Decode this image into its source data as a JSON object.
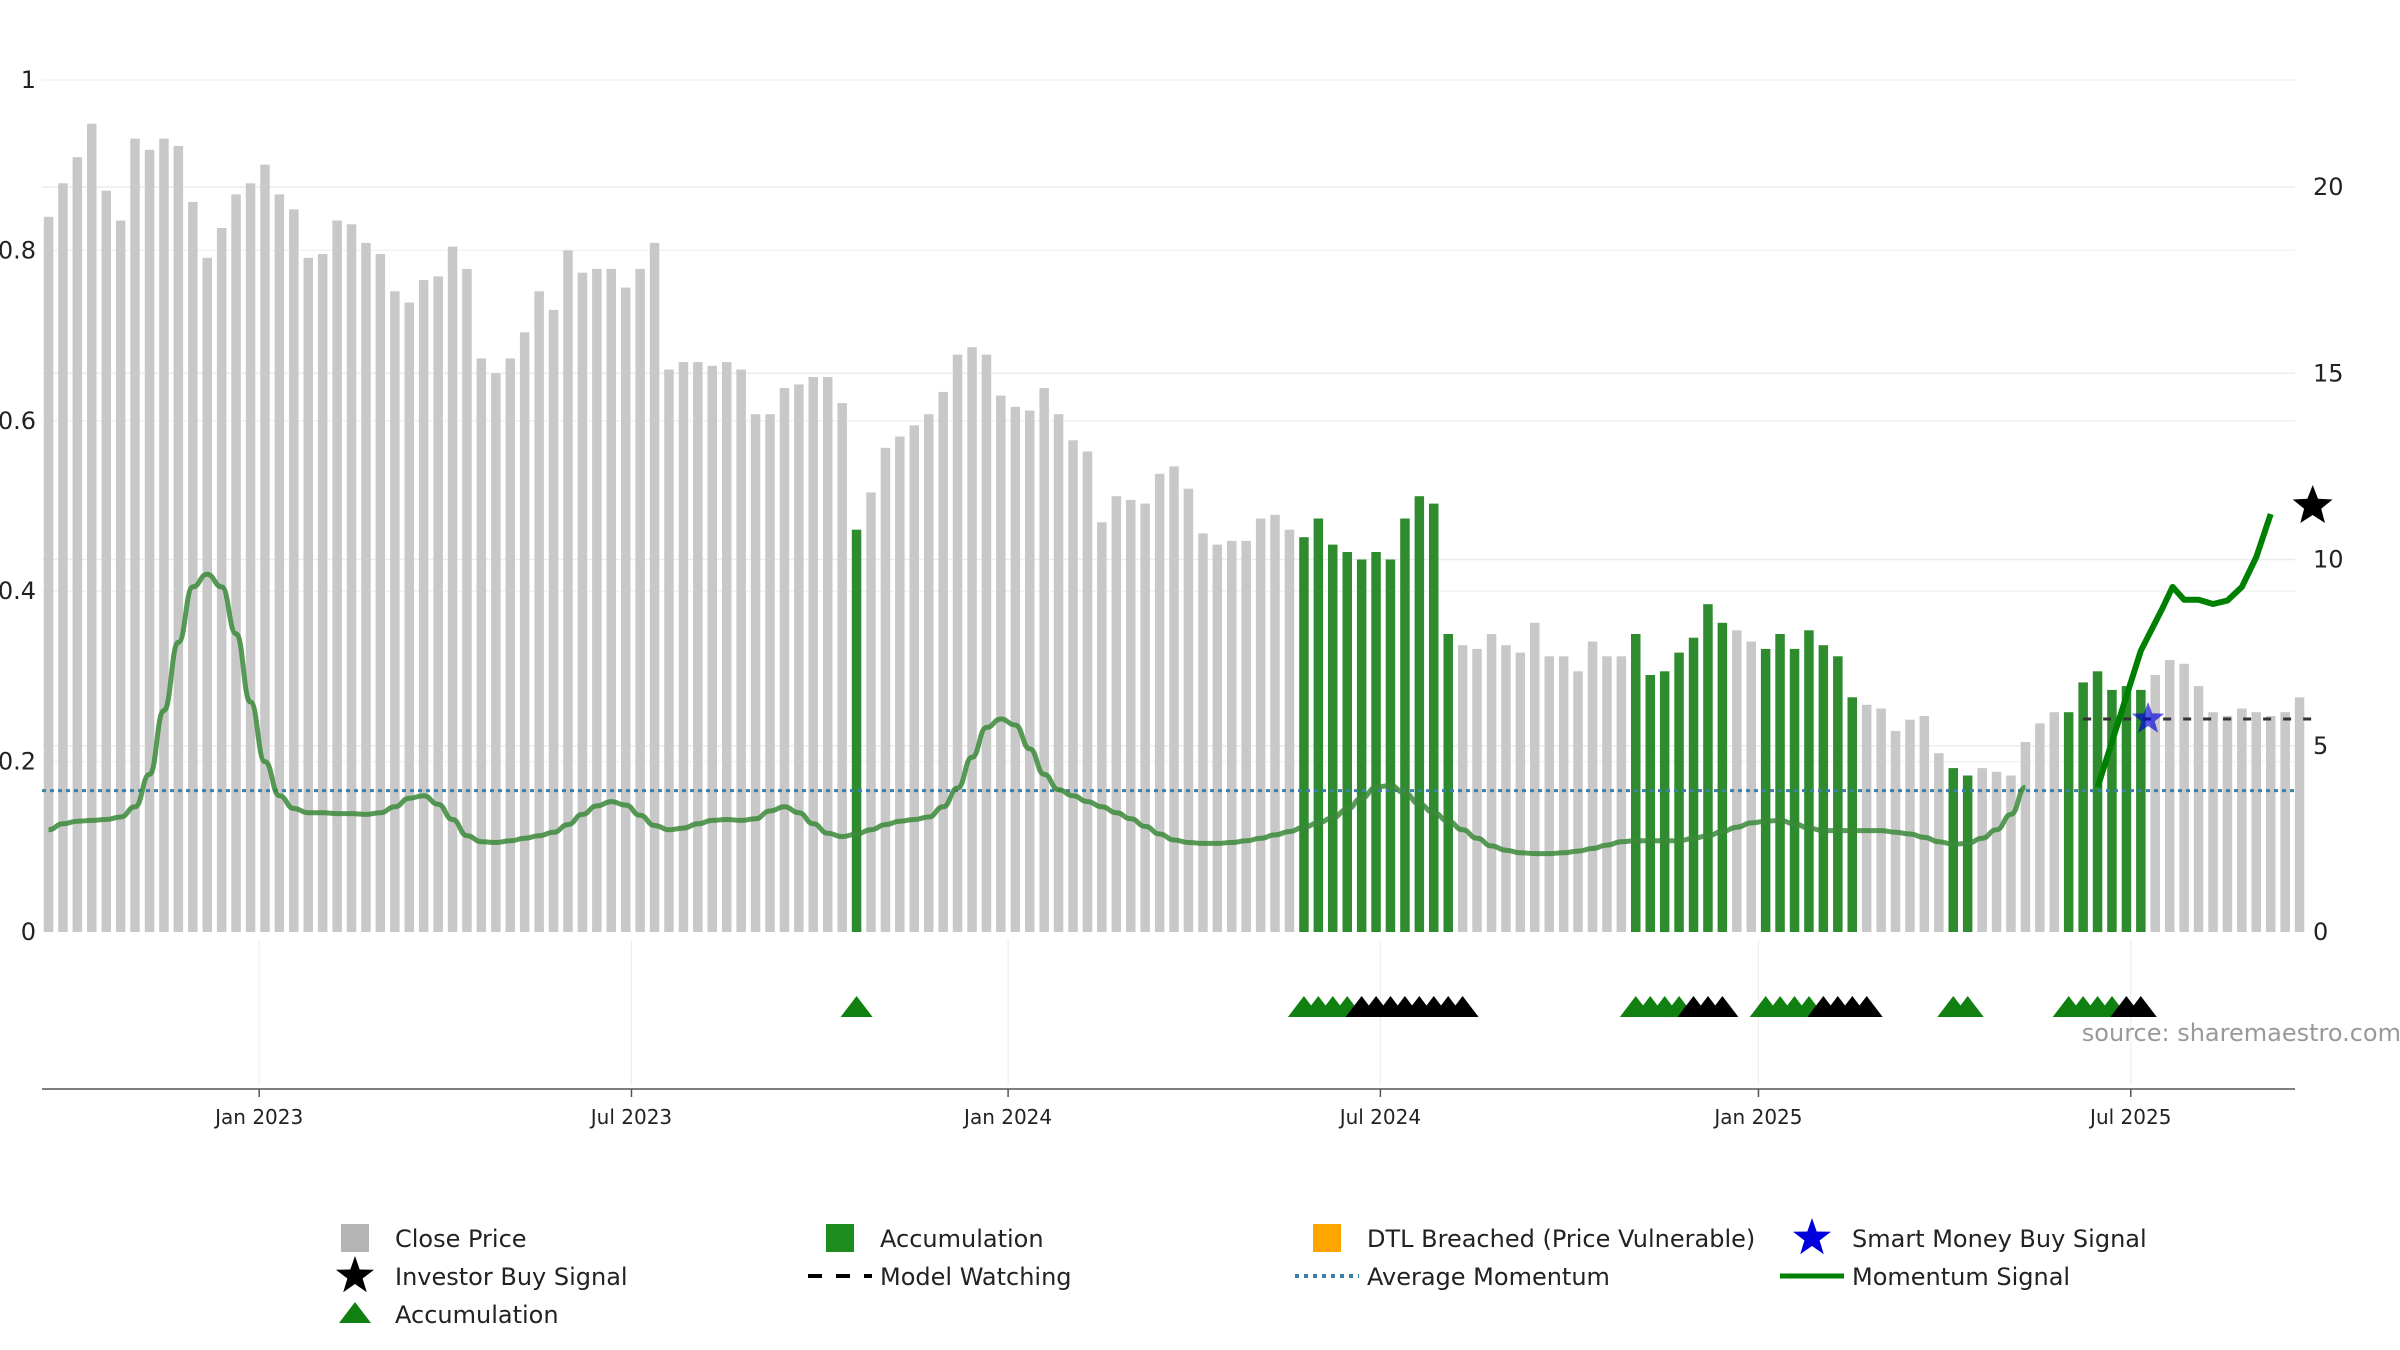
{
  "source_label": "source: sharemaestro.com",
  "colors": {
    "price_bar": "#c8c8c8",
    "accumulation": "#2e8b2e",
    "accumulation_marker": "#108010",
    "investor_marker": "#000000",
    "dtl": "#ffa500",
    "smart_money": "#0000dd",
    "average_momentum": "#3d7fa6",
    "momentum": "#3a8a3a",
    "momentum_bright": "#008000"
  },
  "legend": [
    {
      "label": "Close Price",
      "icon": "square-icon",
      "color": "#b4b4b4"
    },
    {
      "label": "Accumulation",
      "icon": "square-icon",
      "color": "#1e8c1e"
    },
    {
      "label": "DTL Breached (Price Vulnerable)",
      "icon": "square-icon",
      "color": "#ffa500"
    },
    {
      "label": "Smart Money Buy Signal",
      "icon": "star-icon",
      "color": "#0000dd"
    },
    {
      "label": "Investor Buy Signal",
      "icon": "star-icon",
      "color": "#000000"
    },
    {
      "label": "Model Watching",
      "icon": "dash-line-icon",
      "color": "#000000"
    },
    {
      "label": "Average Momentum",
      "icon": "dotted-line-icon",
      "color": "#3d7fa6"
    },
    {
      "label": "Momentum Signal",
      "icon": "solid-line-icon",
      "color": "#008000"
    },
    {
      "label": "Accumulation",
      "icon": "triangle-icon",
      "color": "#108010"
    }
  ],
  "chart_data": {
    "type": "bar",
    "series_count": 158,
    "grid": "horizontal",
    "legend_position": "bottom",
    "x_axis": {
      "tick_labels": [
        "Jan 2023",
        "Jul 2023",
        "Jan 2024",
        "Jul 2024",
        "Jan 2025",
        "Jul 2025"
      ],
      "tick_index": [
        14.6,
        40.4,
        66.5,
        92.3,
        118.5,
        144.3
      ]
    },
    "y_left": {
      "range": [
        0,
        1
      ],
      "ticks": [
        "0",
        "0.2",
        "0.4",
        "0.6",
        "0.8",
        "1"
      ],
      "tick_values": [
        0,
        0.2,
        0.4,
        0.6,
        0.8,
        1
      ]
    },
    "y_right": {
      "range": [
        0,
        22.8
      ],
      "ticks": [
        "0",
        "5",
        "10",
        "15",
        "20"
      ],
      "tick_values": [
        0,
        5,
        10,
        15,
        20
      ]
    },
    "close_price": [
      19.2,
      20.1,
      20.8,
      21.7,
      19.9,
      19.1,
      21.3,
      21.0,
      21.3,
      21.1,
      19.6,
      18.1,
      18.9,
      19.8,
      20.1,
      20.6,
      19.8,
      19.4,
      18.1,
      18.2,
      19.1,
      19.0,
      18.5,
      18.2,
      17.2,
      16.9,
      17.5,
      17.6,
      18.4,
      17.8,
      15.4,
      15.0,
      15.4,
      16.1,
      17.2,
      16.7,
      18.3,
      17.7,
      17.8,
      17.8,
      17.3,
      17.8,
      18.5,
      15.1,
      15.3,
      15.3,
      15.2,
      15.3,
      15.1,
      13.9,
      13.9,
      14.6,
      14.7,
      14.9,
      14.9,
      14.2,
      10.8,
      11.8,
      13.0,
      13.3,
      13.6,
      13.9,
      14.5,
      15.5,
      15.7,
      15.5,
      14.4,
      14.1,
      14.0,
      14.6,
      13.9,
      13.2,
      12.9,
      11.0,
      11.7,
      11.6,
      11.5,
      12.3,
      12.5,
      11.9,
      10.7,
      10.4,
      10.5,
      10.5,
      11.1,
      11.2,
      10.8,
      10.6,
      11.1,
      10.4,
      10.2,
      10.0,
      10.2,
      10.0,
      11.1,
      11.7,
      11.5,
      8.0,
      7.7,
      7.6,
      8.0,
      7.7,
      7.5,
      8.3,
      7.4,
      7.4,
      7.0,
      7.8,
      7.4,
      7.4,
      8.0,
      6.9,
      7.0,
      7.5,
      7.9,
      8.8,
      8.3,
      8.1,
      7.8,
      7.6,
      8.0,
      7.6,
      8.1,
      7.7,
      7.4,
      6.3,
      6.1,
      6.0,
      5.4,
      5.7,
      5.8,
      4.8,
      4.4,
      4.2,
      4.4,
      4.3,
      4.2,
      5.1,
      5.6,
      5.9,
      5.9,
      6.7,
      7.0,
      6.5,
      6.6,
      6.5,
      6.9,
      7.3,
      7.2,
      6.6,
      5.9,
      5.8,
      6.0,
      5.9,
      5.8,
      5.9,
      6.3
    ],
    "accumulation_ranges": [
      [
        56,
        56
      ],
      [
        87,
        97
      ],
      [
        110,
        116
      ],
      [
        119,
        125
      ],
      [
        132,
        133
      ],
      [
        140,
        145
      ]
    ],
    "momentum": [
      0.12,
      0.127,
      0.13,
      0.131,
      0.132,
      0.135,
      0.147,
      0.185,
      0.26,
      0.34,
      0.405,
      0.42,
      0.405,
      0.35,
      0.27,
      0.2,
      0.16,
      0.145,
      0.14,
      0.14,
      0.139,
      0.139,
      0.138,
      0.14,
      0.147,
      0.157,
      0.16,
      0.15,
      0.132,
      0.113,
      0.106,
      0.105,
      0.107,
      0.11,
      0.113,
      0.117,
      0.126,
      0.138,
      0.148,
      0.153,
      0.149,
      0.137,
      0.125,
      0.12,
      0.122,
      0.127,
      0.131,
      0.132,
      0.131,
      0.133,
      0.142,
      0.147,
      0.14,
      0.127,
      0.116,
      0.112,
      0.115,
      0.12,
      0.126,
      0.13,
      0.132,
      0.135,
      0.147,
      0.169,
      0.205,
      0.24,
      0.25,
      0.243,
      0.215,
      0.185,
      0.167,
      0.16,
      0.153,
      0.147,
      0.14,
      0.133,
      0.124,
      0.115,
      0.108,
      0.105,
      0.104,
      0.104,
      0.105,
      0.107,
      0.11,
      0.114,
      0.118,
      0.123,
      0.128,
      0.134,
      0.144,
      0.157,
      0.17,
      0.172,
      0.163,
      0.15,
      0.14,
      0.13,
      0.12,
      0.11,
      0.101,
      0.096,
      0.093,
      0.092,
      0.092,
      0.093,
      0.095,
      0.098,
      0.102,
      0.106,
      0.107,
      0.107,
      0.107,
      0.107,
      0.11,
      0.113,
      0.118,
      0.123,
      0.128,
      0.13,
      0.131,
      0.127,
      0.122,
      0.119,
      0.119,
      0.119,
      0.119,
      0.119,
      0.117,
      0.115,
      0.111,
      0.106,
      0.103,
      0.104,
      0.11,
      0.12,
      0.138,
      0.17
    ],
    "momentum_signal": [
      {
        "i": 142,
        "v": 0.17
      },
      {
        "i": 143.5,
        "v": 0.25
      },
      {
        "i": 145,
        "v": 0.33
      },
      {
        "i": 146.5,
        "v": 0.38
      },
      {
        "i": 147.2,
        "v": 0.405
      },
      {
        "i": 148,
        "v": 0.39
      },
      {
        "i": 149,
        "v": 0.39
      },
      {
        "i": 150,
        "v": 0.385
      },
      {
        "i": 151,
        "v": 0.389
      },
      {
        "i": 152,
        "v": 0.405
      },
      {
        "i": 153,
        "v": 0.44
      },
      {
        "i": 154,
        "v": 0.4905
      }
    ],
    "average_momentum": 0.166,
    "model_watching": {
      "start": 141,
      "end": 157,
      "value": 0.25
    },
    "smart_money_buy_signal": {
      "i": 145.5,
      "v": 0.25
    },
    "investor_buy_signal": {
      "i": 157.6,
      "v": 0.5
    },
    "signal_markers": [
      {
        "i": 56,
        "type": "accumulation"
      },
      {
        "i": 87,
        "type": "accumulation"
      },
      {
        "i": 88,
        "type": "accumulation"
      },
      {
        "i": 89,
        "type": "accumulation"
      },
      {
        "i": 90,
        "type": "accumulation"
      },
      {
        "i": 91,
        "type": "investor"
      },
      {
        "i": 92,
        "type": "investor"
      },
      {
        "i": 93,
        "type": "investor"
      },
      {
        "i": 94,
        "type": "investor"
      },
      {
        "i": 95,
        "type": "investor"
      },
      {
        "i": 96,
        "type": "investor"
      },
      {
        "i": 97,
        "type": "investor"
      },
      {
        "i": 98,
        "type": "investor"
      },
      {
        "i": 110,
        "type": "accumulation"
      },
      {
        "i": 111,
        "type": "accumulation"
      },
      {
        "i": 112,
        "type": "accumulation"
      },
      {
        "i": 113,
        "type": "accumulation"
      },
      {
        "i": 114,
        "type": "investor"
      },
      {
        "i": 115,
        "type": "investor"
      },
      {
        "i": 116,
        "type": "investor"
      },
      {
        "i": 119,
        "type": "accumulation"
      },
      {
        "i": 120,
        "type": "accumulation"
      },
      {
        "i": 121,
        "type": "accumulation"
      },
      {
        "i": 122,
        "type": "accumulation"
      },
      {
        "i": 123,
        "type": "investor"
      },
      {
        "i": 124,
        "type": "investor"
      },
      {
        "i": 125,
        "type": "investor"
      },
      {
        "i": 126,
        "type": "investor"
      },
      {
        "i": 132,
        "type": "accumulation"
      },
      {
        "i": 133,
        "type": "accumulation"
      },
      {
        "i": 140,
        "type": "accumulation"
      },
      {
        "i": 141,
        "type": "accumulation"
      },
      {
        "i": 142,
        "type": "accumulation"
      },
      {
        "i": 143,
        "type": "accumulation"
      },
      {
        "i": 144,
        "type": "investor"
      },
      {
        "i": 145,
        "type": "investor"
      }
    ]
  }
}
